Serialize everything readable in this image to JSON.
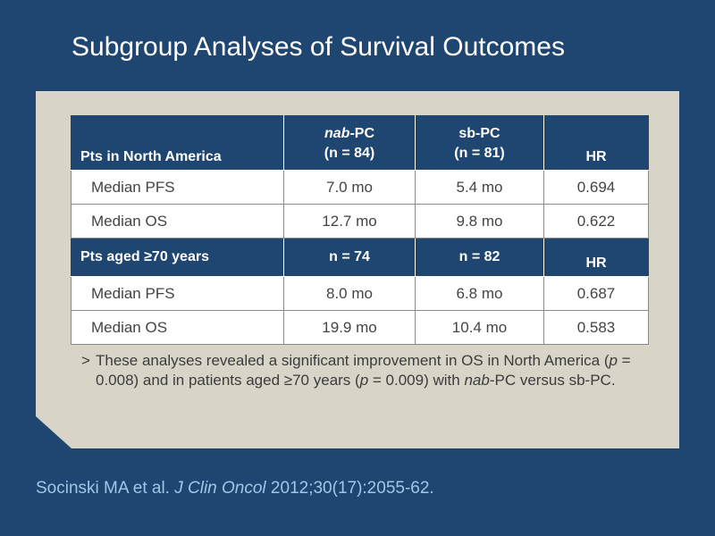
{
  "slide": {
    "title": "Subgroup Analyses of Survival Outcomes"
  },
  "table": {
    "section1": {
      "label": "Pts in North America",
      "col2_italic": "nab",
      "col2_rest": "-PC",
      "col2_n": "(n = 84)",
      "col3_line1": "sb-PC",
      "col3_n": "(n = 81)",
      "col4": "HR",
      "rows": [
        {
          "label": "Median PFS",
          "nab": "7.0 mo",
          "sb": "5.4 mo",
          "hr": "0.694"
        },
        {
          "label": "Median OS",
          "nab": "12.7 mo",
          "sb": "9.8 mo",
          "hr": "0.622"
        }
      ]
    },
    "section2": {
      "label": "Pts aged ≥70 years",
      "col2": "n = 74",
      "col3": "n = 82",
      "col4": "HR",
      "rows": [
        {
          "label": "Median PFS",
          "nab": "8.0 mo",
          "sb": "6.8 mo",
          "hr": "0.687"
        },
        {
          "label": "Median OS",
          "nab": "19.9 mo",
          "sb": "10.4 mo",
          "hr": "0.583"
        }
      ]
    }
  },
  "note": {
    "bullet": ">",
    "t1": "These analyses revealed a significant improvement in OS in North America (",
    "p1": "p",
    "t2": " = 0.008) and in patients aged ≥70 years (",
    "p2": "p",
    "t3": " = 0.009) with ",
    "nab": "nab",
    "t4": "-PC versus sb-PC."
  },
  "citation": {
    "authors": "Socinski MA et al. ",
    "journal": "J Clin Oncol",
    "ref": " 2012;30(17):2055-62."
  },
  "colors": {
    "background": "#1f4670",
    "panel": "#d9d4c8",
    "header_fill": "#1f4670",
    "citation_text": "#9fc7e8"
  }
}
